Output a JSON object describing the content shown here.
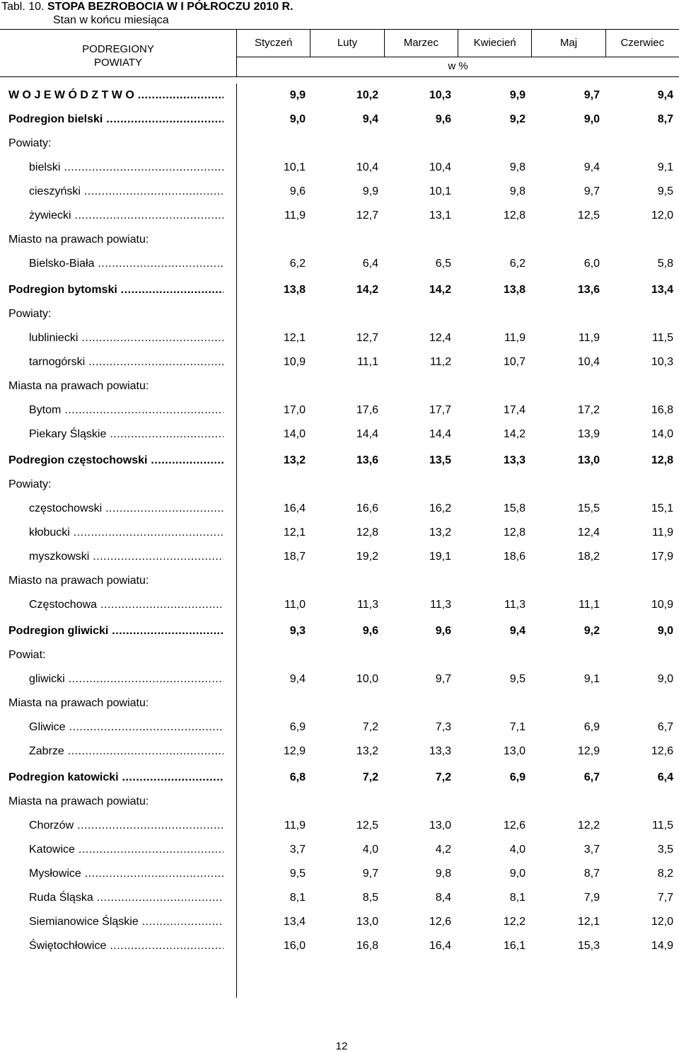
{
  "title": {
    "prefix": "Tabl. 10.",
    "main": "STOPA BEZROBOCIA W I PÓŁROCZU 2010 R.",
    "subtitle": "Stan w końcu miesiąca"
  },
  "header": {
    "regions_line1": "PODREGIONY",
    "regions_line2": "POWIATY",
    "months": [
      "Styczeń",
      "Luty",
      "Marzec",
      "Kwiecień",
      "Maj",
      "Czerwiec"
    ],
    "unit": "w %"
  },
  "rows": [
    {
      "label": "W O J E W Ó D Z T W O",
      "values": [
        "9,9",
        "10,2",
        "10,3",
        "9,9",
        "9,7",
        "9,4"
      ]
    },
    {
      "label": "Podregion bielski",
      "values": [
        "9,0",
        "9,4",
        "9,6",
        "9,2",
        "9,0",
        "8,7"
      ]
    },
    {
      "label": "Powiaty:",
      "values": []
    },
    {
      "label": "bielski",
      "values": [
        "10,1",
        "10,4",
        "10,4",
        "9,8",
        "9,4",
        "9,1"
      ]
    },
    {
      "label": "cieszyński",
      "values": [
        "9,6",
        "9,9",
        "10,1",
        "9,8",
        "9,7",
        "9,5"
      ]
    },
    {
      "label": "żywiecki",
      "values": [
        "11,9",
        "12,7",
        "13,1",
        "12,8",
        "12,5",
        "12,0"
      ]
    },
    {
      "label": "Miasto na prawach powiatu:",
      "values": []
    },
    {
      "label": "Bielsko-Biała",
      "values": [
        "6,2",
        "6,4",
        "6,5",
        "6,2",
        "6,0",
        "5,8"
      ]
    },
    {
      "label": "Podregion bytomski",
      "values": [
        "13,8",
        "14,2",
        "14,2",
        "13,8",
        "13,6",
        "13,4"
      ]
    },
    {
      "label": "Powiaty:",
      "values": []
    },
    {
      "label": "lubliniecki",
      "values": [
        "12,1",
        "12,7",
        "12,4",
        "11,9",
        "11,9",
        "11,5"
      ]
    },
    {
      "label": "tarnogórski",
      "values": [
        "10,9",
        "11,1",
        "11,2",
        "10,7",
        "10,4",
        "10,3"
      ]
    },
    {
      "label": "Miasta na prawach powiatu:",
      "values": []
    },
    {
      "label": "Bytom",
      "values": [
        "17,0",
        "17,6",
        "17,7",
        "17,4",
        "17,2",
        "16,8"
      ]
    },
    {
      "label": "Piekary Śląskie",
      "values": [
        "14,0",
        "14,4",
        "14,4",
        "14,2",
        "13,9",
        "14,0"
      ]
    },
    {
      "label": "Podregion częstochowski",
      "values": [
        "13,2",
        "13,6",
        "13,5",
        "13,3",
        "13,0",
        "12,8"
      ]
    },
    {
      "label": "Powiaty:",
      "values": []
    },
    {
      "label": "częstochowski",
      "values": [
        "16,4",
        "16,6",
        "16,2",
        "15,8",
        "15,5",
        "15,1"
      ]
    },
    {
      "label": "kłobucki",
      "values": [
        "12,1",
        "12,8",
        "13,2",
        "12,8",
        "12,4",
        "11,9"
      ]
    },
    {
      "label": "myszkowski",
      "values": [
        "18,7",
        "19,2",
        "19,1",
        "18,6",
        "18,2",
        "17,9"
      ]
    },
    {
      "label": "Miasto na prawach powiatu:",
      "values": []
    },
    {
      "label": "Częstochowa",
      "values": [
        "11,0",
        "11,3",
        "11,3",
        "11,3",
        "11,1",
        "10,9"
      ]
    },
    {
      "label": "Podregion gliwicki",
      "values": [
        "9,3",
        "9,6",
        "9,6",
        "9,4",
        "9,2",
        "9,0"
      ]
    },
    {
      "label": "Powiat:",
      "values": []
    },
    {
      "label": "gliwicki",
      "values": [
        "9,4",
        "10,0",
        "9,7",
        "9,5",
        "9,1",
        "9,0"
      ]
    },
    {
      "label": "Miasta na prawach powiatu:",
      "values": []
    },
    {
      "label": "Gliwice",
      "values": [
        "6,9",
        "7,2",
        "7,3",
        "7,1",
        "6,9",
        "6,7"
      ]
    },
    {
      "label": "Zabrze",
      "values": [
        "12,9",
        "13,2",
        "13,3",
        "13,0",
        "12,9",
        "12,6"
      ]
    },
    {
      "label": "Podregion katowicki",
      "values": [
        "6,8",
        "7,2",
        "7,2",
        "6,9",
        "6,7",
        "6,4"
      ]
    },
    {
      "label": "Miasta na prawach powiatu:",
      "values": []
    },
    {
      "label": "Chorzów",
      "values": [
        "11,9",
        "12,5",
        "13,0",
        "12,6",
        "12,2",
        "11,5"
      ]
    },
    {
      "label": "Katowice",
      "values": [
        "3,7",
        "4,0",
        "4,2",
        "4,0",
        "3,7",
        "3,5"
      ]
    },
    {
      "label": "Mysłowice",
      "values": [
        "9,5",
        "9,7",
        "9,8",
        "9,0",
        "8,7",
        "8,2"
      ]
    },
    {
      "label": "Ruda Śląska",
      "values": [
        "8,1",
        "8,5",
        "8,4",
        "8,1",
        "7,9",
        "7,7"
      ]
    },
    {
      "label": "Siemianowice Śląskie",
      "values": [
        "13,4",
        "13,0",
        "12,6",
        "12,2",
        "12,1",
        "12,0"
      ]
    },
    {
      "label": "Świętochłowice",
      "values": [
        "16,0",
        "16,8",
        "16,4",
        "16,1",
        "15,3",
        "14,9"
      ]
    }
  ],
  "page_number": "12"
}
